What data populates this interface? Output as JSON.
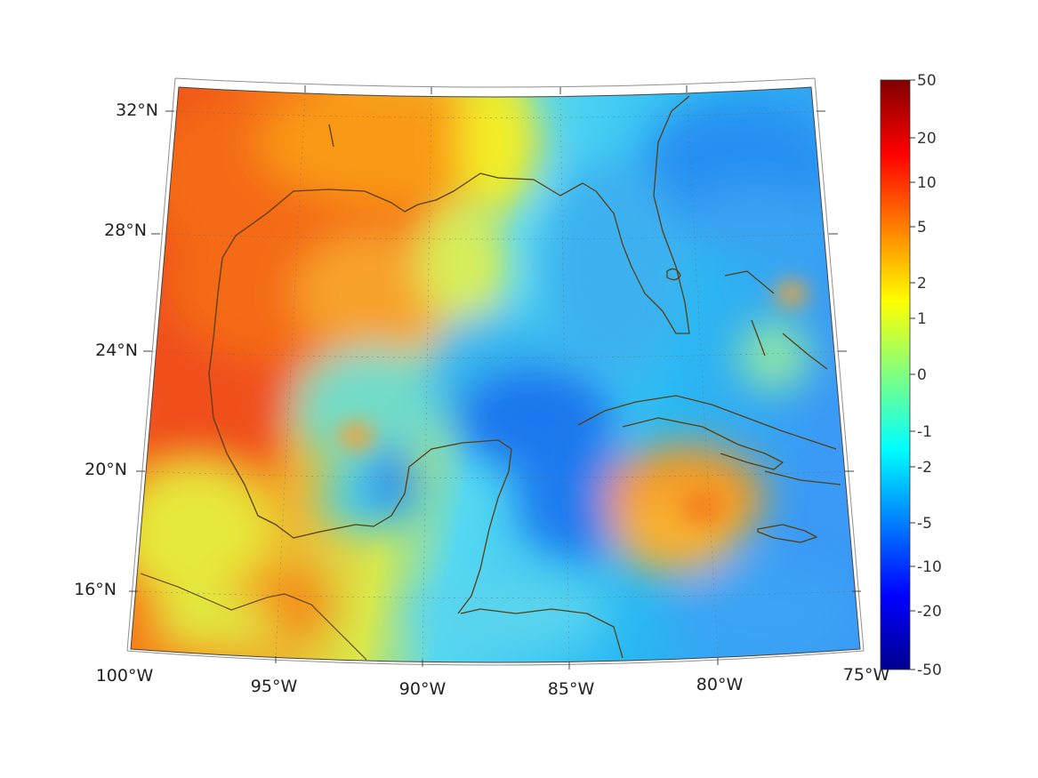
{
  "map": {
    "lat_labels": [
      "32°N",
      "28°N",
      "24°N",
      "20°N",
      "16°N"
    ],
    "lon_labels": [
      "100°W",
      "95°W",
      "90°W",
      "85°W",
      "80°W",
      "75°W"
    ],
    "extent": {
      "lon_min": -100,
      "lon_max": -75,
      "lat_min": 14,
      "lat_max": 33
    },
    "grid": true
  },
  "colorbar": {
    "tick_labels": [
      "50",
      "20",
      "10",
      "5",
      "2",
      "1",
      "0",
      "-1",
      "-2",
      "-5",
      "-10",
      "-20",
      "-50"
    ],
    "colormap": "jet"
  }
}
